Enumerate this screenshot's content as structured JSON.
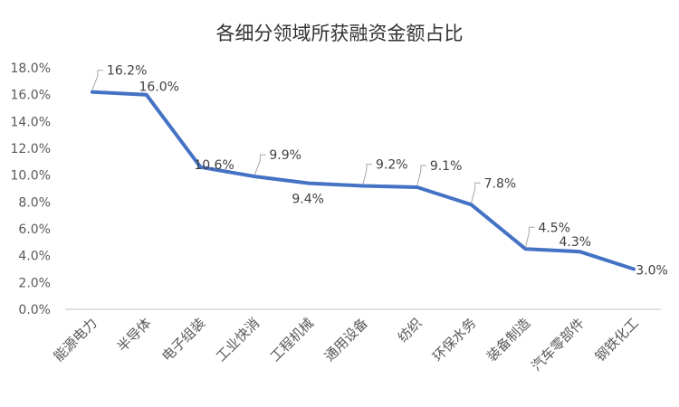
{
  "chart_data": {
    "type": "line",
    "title": "各细分领域所获融资金额占比",
    "xlabel": "",
    "ylabel": "",
    "categories": [
      "能源电力",
      "半导体",
      "电子组装",
      "工业快消",
      "工程机械",
      "通用设备",
      "纺织",
      "环保水务",
      "装备制造",
      "汽车零部件",
      "钢铁化工"
    ],
    "series": [
      {
        "values": [
          16.2,
          16.0,
          10.6,
          9.9,
          9.4,
          9.2,
          9.1,
          7.8,
          4.5,
          4.3,
          3.0
        ],
        "labels": [
          "16.2%",
          "16.0%",
          "10.6%",
          "9.9%",
          "9.4%",
          "9.2%",
          "9.1%",
          "7.8%",
          "4.5%",
          "4.3%",
          "3.0%"
        ]
      }
    ],
    "ylim": [
      0,
      18
    ],
    "yticks": [
      0,
      2,
      4,
      6,
      8,
      10,
      12,
      14,
      16,
      18
    ],
    "ytick_labels": [
      "0.0%",
      "2.0%",
      "4.0%",
      "6.0%",
      "8.0%",
      "10.0%",
      "12.0%",
      "14.0%",
      "16.0%",
      "18.0%"
    ],
    "grid": false,
    "legend": "none",
    "colors": {
      "line": "#4472C4",
      "axis": "#BFBFBF",
      "leader": "#A6A6A6"
    }
  }
}
